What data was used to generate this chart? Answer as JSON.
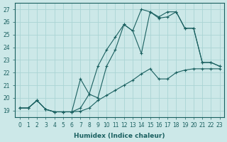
{
  "xlabel": "Humidex (Indice chaleur)",
  "xlim": [
    -0.5,
    23.5
  ],
  "ylim": [
    18.5,
    27.5
  ],
  "yticks": [
    19,
    20,
    21,
    22,
    23,
    24,
    25,
    26,
    27
  ],
  "xticks": [
    0,
    1,
    2,
    3,
    4,
    5,
    6,
    7,
    8,
    9,
    10,
    11,
    12,
    13,
    14,
    15,
    16,
    17,
    18,
    19,
    20,
    21,
    22,
    23
  ],
  "bg_color": "#cce8e8",
  "grid_color": "#aad4d4",
  "line_color": "#1a6060",
  "line1_x": [
    0,
    1,
    2,
    3,
    4,
    5,
    6,
    7,
    8,
    9,
    10,
    11,
    12,
    13,
    14,
    15,
    16,
    17,
    18,
    19,
    20,
    21,
    22,
    23
  ],
  "line1_y": [
    19.2,
    19.2,
    19.8,
    19.1,
    18.9,
    18.9,
    18.9,
    18.95,
    19.2,
    19.8,
    20.2,
    20.6,
    21.0,
    21.4,
    21.9,
    22.3,
    21.5,
    21.5,
    22.0,
    22.2,
    22.3,
    22.3,
    22.3,
    22.3
  ],
  "line2_x": [
    0,
    1,
    2,
    3,
    4,
    5,
    6,
    7,
    8,
    9,
    10,
    11,
    12,
    13,
    14,
    15,
    16,
    17,
    18,
    19,
    20,
    21,
    22,
    23
  ],
  "line2_y": [
    19.2,
    19.2,
    19.8,
    19.1,
    18.9,
    18.9,
    18.9,
    21.5,
    20.3,
    20.0,
    22.5,
    23.8,
    25.8,
    25.3,
    23.5,
    26.8,
    26.3,
    26.4,
    26.8,
    25.5,
    25.5,
    22.8,
    22.8,
    22.5
  ],
  "line3_x": [
    0,
    1,
    2,
    3,
    4,
    5,
    6,
    7,
    8,
    9,
    10,
    11,
    12,
    13,
    14,
    15,
    16,
    17,
    18,
    19,
    20,
    21,
    22,
    23
  ],
  "line3_y": [
    19.2,
    19.2,
    19.8,
    19.1,
    18.9,
    18.9,
    18.9,
    19.2,
    20.3,
    22.5,
    23.8,
    24.8,
    25.8,
    25.3,
    27.0,
    26.8,
    26.4,
    26.8,
    26.8,
    25.5,
    25.5,
    22.8,
    22.8,
    22.5
  ]
}
